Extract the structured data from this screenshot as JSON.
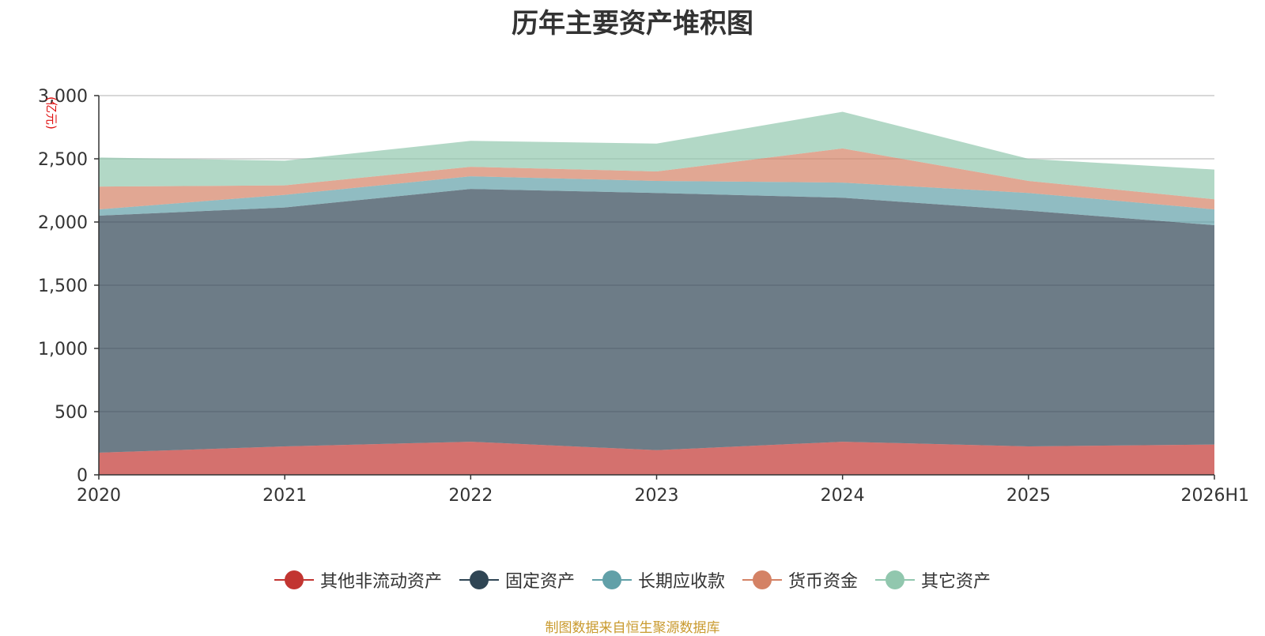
{
  "chart_data": {
    "type": "area",
    "stacked": true,
    "title": "历年主要资产堆积图",
    "ylabel": "(亿元)",
    "xlabel": "",
    "categories": [
      "2020",
      "2021",
      "2022",
      "2023",
      "2024",
      "2025",
      "2026H1"
    ],
    "ylim": [
      0,
      3000
    ],
    "yticks": [
      "0",
      "500",
      "1,000",
      "1,500",
      "2,000",
      "2,500",
      "3,000"
    ],
    "ytick_values": [
      0,
      500,
      1000,
      1500,
      2000,
      2500,
      3000
    ],
    "grid": true,
    "legend_position": "bottom",
    "series": [
      {
        "name": "其他非流动资产",
        "color": "#c23531",
        "values": [
          175,
          225,
          262,
          195,
          262,
          225,
          240
        ]
      },
      {
        "name": "固定资产",
        "color": "#2f4554",
        "values": [
          1875,
          1890,
          2000,
          2035,
          1930,
          1865,
          1735
        ]
      },
      {
        "name": "长期应收款",
        "color": "#61a0a8",
        "values": [
          50,
          100,
          100,
          95,
          120,
          140,
          125
        ]
      },
      {
        "name": "货币资金",
        "color": "#d48265",
        "values": [
          180,
          75,
          75,
          75,
          270,
          95,
          80
        ]
      },
      {
        "name": "其它资产",
        "color": "#91c7ae",
        "values": [
          230,
          195,
          205,
          220,
          290,
          175,
          235
        ]
      }
    ]
  },
  "source_note": "制图数据来自恒生聚源数据库"
}
